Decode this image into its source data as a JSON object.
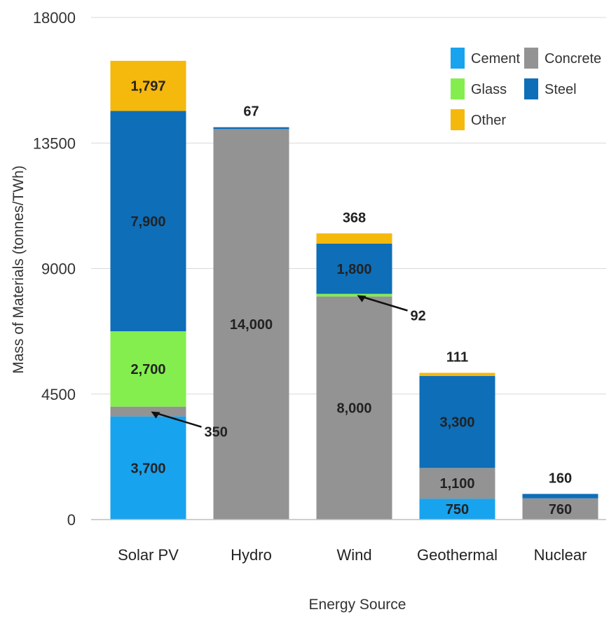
{
  "chart_data": {
    "type": "bar",
    "stacked": true,
    "xlabel": "Energy Source",
    "ylabel": "Mass of Materials (tonnes/TWh)",
    "ylim": [
      0,
      18000
    ],
    "yticks": [
      0,
      4500,
      9000,
      13500,
      18000
    ],
    "grid": "horizontal",
    "legend_position": "top-right",
    "categories": [
      "Solar PV",
      "Hydro",
      "Wind",
      "Geothermal",
      "Nuclear"
    ],
    "series": [
      {
        "name": "Cement",
        "color": "#18a3ee",
        "values": [
          3700,
          0,
          0,
          750,
          0
        ]
      },
      {
        "name": "Concrete",
        "color": "#939393",
        "values": [
          350,
          14000,
          8000,
          1100,
          760
        ]
      },
      {
        "name": "Glass",
        "color": "#84ee4e",
        "values": [
          2700,
          0,
          92,
          0,
          0
        ]
      },
      {
        "name": "Steel",
        "color": "#0e6eb8",
        "values": [
          7900,
          67,
          1800,
          3300,
          160
        ]
      },
      {
        "name": "Other",
        "color": "#f5b80c",
        "values": [
          1797,
          0,
          368,
          111,
          0
        ]
      }
    ],
    "data_labels": [
      {
        "category": "Solar PV",
        "series": "Cement",
        "text": "3,700"
      },
      {
        "category": "Solar PV",
        "series": "Concrete",
        "text": "350",
        "callout": true
      },
      {
        "category": "Solar PV",
        "series": "Glass",
        "text": "2,700"
      },
      {
        "category": "Solar PV",
        "series": "Steel",
        "text": "7,900"
      },
      {
        "category": "Solar PV",
        "series": "Other",
        "text": "1,797"
      },
      {
        "category": "Hydro",
        "series": "Concrete",
        "text": "14,000"
      },
      {
        "category": "Hydro",
        "series": "Steel",
        "text": "67",
        "above": true
      },
      {
        "category": "Wind",
        "series": "Concrete",
        "text": "8,000"
      },
      {
        "category": "Wind",
        "series": "Glass",
        "text": "92",
        "callout": true
      },
      {
        "category": "Wind",
        "series": "Steel",
        "text": "1,800"
      },
      {
        "category": "Wind",
        "series": "Other",
        "text": "368",
        "above": true
      },
      {
        "category": "Geothermal",
        "series": "Cement",
        "text": "750"
      },
      {
        "category": "Geothermal",
        "series": "Concrete",
        "text": "1,100"
      },
      {
        "category": "Geothermal",
        "series": "Steel",
        "text": "3,300"
      },
      {
        "category": "Geothermal",
        "series": "Other",
        "text": "111",
        "above": true
      },
      {
        "category": "Nuclear",
        "series": "Concrete",
        "text": "760"
      },
      {
        "category": "Nuclear",
        "series": "Steel",
        "text": "160",
        "above": true
      }
    ],
    "legend": [
      {
        "name": "Cement",
        "color": "#18a3ee"
      },
      {
        "name": "Concrete",
        "color": "#939393"
      },
      {
        "name": "Glass",
        "color": "#84ee4e"
      },
      {
        "name": "Steel",
        "color": "#0e6eb8"
      },
      {
        "name": "Other",
        "color": "#f5b80c"
      }
    ]
  }
}
